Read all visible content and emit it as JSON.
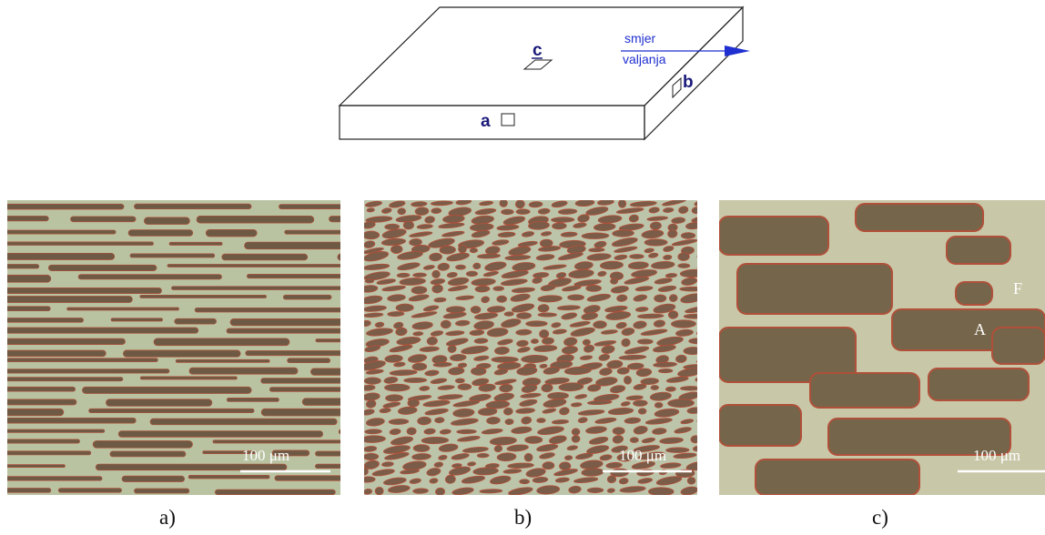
{
  "schematic": {
    "labels": {
      "a": "a",
      "b": "b",
      "c": "c"
    },
    "direction_line1": "smjer",
    "direction_line2": "valjanja",
    "colors": {
      "outline": "#222222",
      "label": "#1a1a7a",
      "arrow": "#1f2fd0"
    }
  },
  "panels": [
    {
      "label": "a)",
      "scale_bar": "100 μm"
    },
    {
      "label": "b)",
      "scale_bar": "100 μm"
    },
    {
      "label": "c)",
      "scale_bar": "100 μm",
      "phase_labels": {
        "ferrite": "F",
        "austenite": "A"
      }
    }
  ],
  "colors": {
    "ferrite": "#b9c3a2",
    "austenite": "#6e5a44",
    "austenite_edge": "#b0503a"
  }
}
